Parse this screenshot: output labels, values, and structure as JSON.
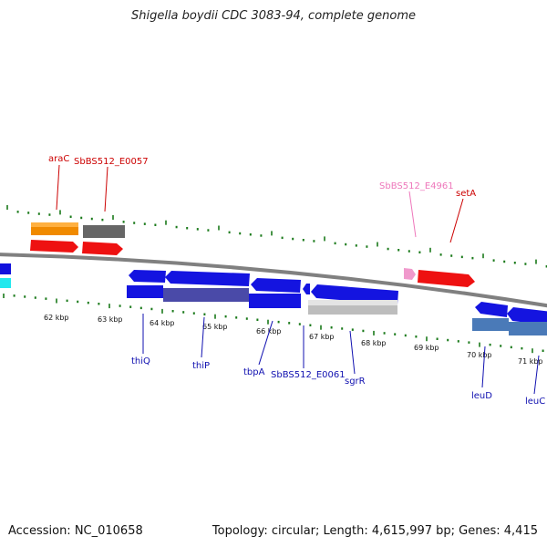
{
  "title": "Shigella boydii CDC 3083-94, complete genome",
  "footer": {
    "accession": "Accession: NC_010658",
    "topology": "Topology: circular; Length: 4,615,997 bp; Genes: 4,415"
  },
  "colors": {
    "backbone": "#808080",
    "tick": "#1a7a1a",
    "label_red": "#cc0000",
    "label_pink": "#ee77bb",
    "label_blue": "#1010b0"
  },
  "kbp_ticks": [
    "62 kbp",
    "63 kbp",
    "64 kbp",
    "65 kbp",
    "66 kbp",
    "67 kbp",
    "68 kbp",
    "69 kbp",
    "70 kbp",
    "71 kbp"
  ],
  "gene_labels": {
    "araC": "araC",
    "e0057": "SbBS512_E0057",
    "e4961": "SbBS512_E4961",
    "setA": "setA",
    "thiQ": "thiQ",
    "thiP": "thiP",
    "tbpA": "tbpA",
    "e0061": "SbBS512_E0061",
    "sgrR": "sgrR",
    "leuD": "leuD",
    "leuC": "leuC"
  }
}
